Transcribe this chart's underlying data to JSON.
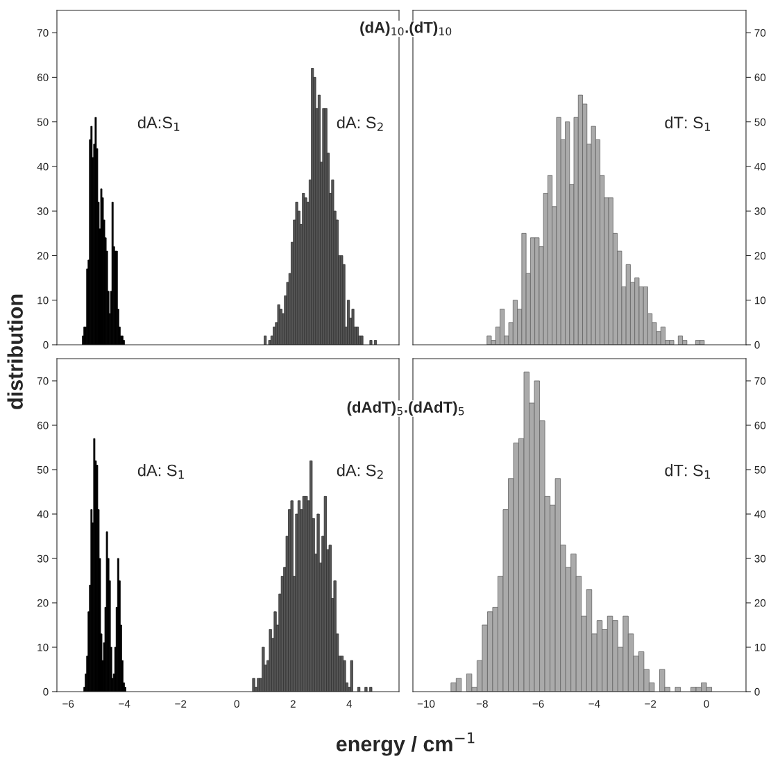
{
  "chart_data": [
    {
      "type": "bar",
      "title": "(dA)$_{10}$.(dT)$_{10}$",
      "ylabel": "distribution",
      "xlim": [
        -6.4,
        5.77
      ],
      "ylim": [
        0,
        75
      ],
      "yticks": [
        0,
        10,
        20,
        30,
        40,
        50,
        60,
        70
      ],
      "tick_labels": "y",
      "series": [
        {
          "name": "dA:S$_{1}$",
          "color": "#000000",
          "x": [
            -5.47,
            -5.42,
            -5.37,
            -5.32,
            -5.27,
            -5.22,
            -5.17,
            -5.12,
            -5.07,
            -5.02,
            -4.97,
            -4.92,
            -4.87,
            -4.82,
            -4.77,
            -4.72,
            -4.67,
            -4.62,
            -4.57,
            -4.52,
            -4.47,
            -4.42,
            -4.37,
            -4.32,
            -4.27,
            -4.22,
            -4.17,
            -4.12,
            -4.07,
            -4.02
          ],
          "values": [
            2,
            4,
            4,
            17,
            19,
            46,
            49,
            42,
            45,
            51,
            44,
            32,
            26,
            35,
            33,
            28,
            24,
            21,
            12,
            7,
            12,
            32,
            22,
            21,
            21,
            8,
            4,
            2,
            2,
            1
          ]
        },
        {
          "name": "dA: S$_{2}$",
          "color": "#555555",
          "x": [
            1.01,
            1.09,
            1.17,
            1.25,
            1.33,
            1.41,
            1.49,
            1.57,
            1.65,
            1.73,
            1.81,
            1.89,
            1.97,
            2.05,
            2.13,
            2.21,
            2.29,
            2.37,
            2.45,
            2.53,
            2.61,
            2.69,
            2.77,
            2.85,
            2.93,
            3.01,
            3.09,
            3.17,
            3.25,
            3.33,
            3.41,
            3.49,
            3.57,
            3.65,
            3.73,
            3.81,
            3.89,
            3.97,
            4.05,
            4.13,
            4.21,
            4.29,
            4.37,
            4.45,
            4.53,
            4.61,
            4.69,
            4.77,
            4.85,
            4.93
          ],
          "values": [
            2,
            0,
            1,
            2,
            4,
            5,
            9,
            8,
            7,
            11,
            14,
            16,
            23,
            28,
            32,
            30,
            27,
            34,
            33,
            32,
            37,
            62,
            60,
            53,
            56,
            41,
            53,
            53,
            43,
            34,
            37,
            30,
            28,
            20,
            20,
            18,
            4,
            10,
            6,
            8,
            4,
            4,
            2,
            2,
            0,
            0,
            0,
            1,
            0,
            1
          ]
        }
      ]
    },
    {
      "type": "bar",
      "xlim": [
        -10.47,
        1.41
      ],
      "ylim": [
        0,
        75
      ],
      "yticks": [
        0,
        10,
        20,
        30,
        40,
        50,
        60,
        70
      ],
      "tick_labels": "y",
      "series": [
        {
          "name": "dT: S$_{1}$",
          "color": "#aaaaaa",
          "x": [
            -7.75,
            -7.595,
            -7.44,
            -7.285,
            -7.13,
            -6.975,
            -6.82,
            -6.665,
            -6.51,
            -6.355,
            -6.2,
            -6.045,
            -5.89,
            -5.735,
            -5.58,
            -5.425,
            -5.27,
            -5.115,
            -4.96,
            -4.805,
            -4.65,
            -4.495,
            -4.34,
            -4.185,
            -4.03,
            -3.875,
            -3.72,
            -3.565,
            -3.41,
            -3.255,
            -3.1,
            -2.945,
            -2.79,
            -2.635,
            -2.48,
            -2.325,
            -2.17,
            -2.015,
            -1.86,
            -1.705,
            -1.55,
            -1.395,
            -1.24,
            -1.085,
            -0.93,
            -0.775,
            -0.62,
            -0.465,
            -0.31,
            -0.155
          ],
          "values": [
            2,
            1,
            4,
            8,
            2,
            5,
            10,
            8,
            25,
            16,
            24,
            24,
            22,
            34,
            38,
            31,
            51,
            46,
            50,
            36,
            51,
            56,
            54,
            45,
            49,
            46,
            38,
            33,
            33,
            25,
            21,
            13,
            18,
            14,
            15,
            13,
            13,
            7,
            5,
            3,
            4,
            1,
            1,
            0,
            2,
            1,
            0,
            0,
            1,
            1
          ]
        }
      ]
    },
    {
      "type": "bar",
      "title": "(dAdT)$_{5}$.(dAdT)$_{5}$",
      "xlabel": "energy / cm$^{−1}$",
      "xlim": [
        -6.4,
        5.77
      ],
      "xticks": [
        -6,
        -4,
        -2,
        0,
        2,
        4
      ],
      "ylim": [
        0,
        75
      ],
      "yticks": [
        0,
        10,
        20,
        30,
        40,
        50,
        60,
        70
      ],
      "series": [
        {
          "name": "dA: S$_{1}$",
          "color": "#000000",
          "x": [
            -5.42,
            -5.37,
            -5.32,
            -5.27,
            -5.22,
            -5.17,
            -5.12,
            -5.07,
            -5.02,
            -4.97,
            -4.92,
            -4.87,
            -4.82,
            -4.77,
            -4.72,
            -4.67,
            -4.62,
            -4.57,
            -4.52,
            -4.47,
            -4.42,
            -4.37,
            -4.32,
            -4.27,
            -4.22,
            -4.17,
            -4.12,
            -4.07,
            -4.02,
            -3.97
          ],
          "values": [
            1,
            4,
            8,
            18,
            24,
            41,
            38,
            57,
            52,
            51,
            41,
            30,
            13,
            7,
            11,
            19,
            36,
            30,
            25,
            10,
            3,
            4,
            10,
            19,
            30,
            25,
            15,
            7,
            2,
            1
          ]
        },
        {
          "name": "dA: S$_{2}$",
          "color": "#555555",
          "x": [
            0.6,
            0.685,
            0.77,
            0.855,
            0.94,
            1.025,
            1.11,
            1.195,
            1.28,
            1.365,
            1.45,
            1.535,
            1.62,
            1.705,
            1.79,
            1.875,
            1.96,
            2.045,
            2.13,
            2.215,
            2.3,
            2.385,
            2.47,
            2.555,
            2.64,
            2.725,
            2.81,
            2.895,
            2.98,
            3.065,
            3.15,
            3.235,
            3.32,
            3.405,
            3.49,
            3.575,
            3.66,
            3.745,
            3.83,
            3.915,
            4.0,
            4.085,
            4.17,
            4.255,
            4.34,
            4.425,
            4.51,
            4.595,
            4.68,
            4.765
          ],
          "values": [
            3,
            1,
            3,
            3,
            10,
            6,
            7,
            14,
            12,
            18,
            15,
            22,
            26,
            28,
            35,
            41,
            43,
            26,
            40,
            43,
            41,
            44,
            44,
            43,
            52,
            39,
            31,
            40,
            29,
            35,
            44,
            32,
            33,
            21,
            25,
            13,
            8,
            8,
            7,
            2,
            1,
            7,
            0,
            0,
            1,
            0,
            0,
            1,
            0,
            1
          ]
        }
      ]
    },
    {
      "type": "bar",
      "xlim": [
        -10.47,
        1.41
      ],
      "xticks": [
        -10,
        -8,
        -6,
        -4,
        -2,
        0
      ],
      "ylim": [
        0,
        75
      ],
      "yticks": [
        0,
        10,
        20,
        30,
        40,
        50,
        60,
        70
      ],
      "series": [
        {
          "name": "dT: S$_{1}$",
          "color": "#aaaaaa",
          "x": [
            -9.02,
            -8.834,
            -8.648,
            -8.462,
            -8.276,
            -8.09,
            -7.904,
            -7.718,
            -7.532,
            -7.346,
            -7.16,
            -6.974,
            -6.788,
            -6.602,
            -6.416,
            -6.23,
            -6.044,
            -5.858,
            -5.672,
            -5.486,
            -5.3,
            -5.114,
            -4.928,
            -4.742,
            -4.556,
            -4.37,
            -4.184,
            -3.998,
            -3.812,
            -3.626,
            -3.44,
            -3.254,
            -3.068,
            -2.882,
            -2.696,
            -2.51,
            -2.324,
            -2.138,
            -1.952,
            -1.766,
            -1.58,
            -1.394,
            -1.208,
            -1.022,
            -0.836,
            -0.65,
            -0.464,
            -0.278,
            -0.092,
            0.094
          ],
          "values": [
            2,
            3,
            0,
            4,
            1,
            7,
            15,
            18,
            19,
            26,
            41,
            48,
            56,
            57,
            72,
            65,
            70,
            61,
            44,
            42,
            48,
            33,
            28,
            31,
            26,
            17,
            23,
            13,
            16,
            14,
            17,
            16,
            10,
            17,
            13,
            8,
            9,
            5,
            2,
            0,
            5,
            1,
            0,
            1,
            0,
            0,
            1,
            1,
            2,
            1
          ]
        }
      ]
    }
  ]
}
